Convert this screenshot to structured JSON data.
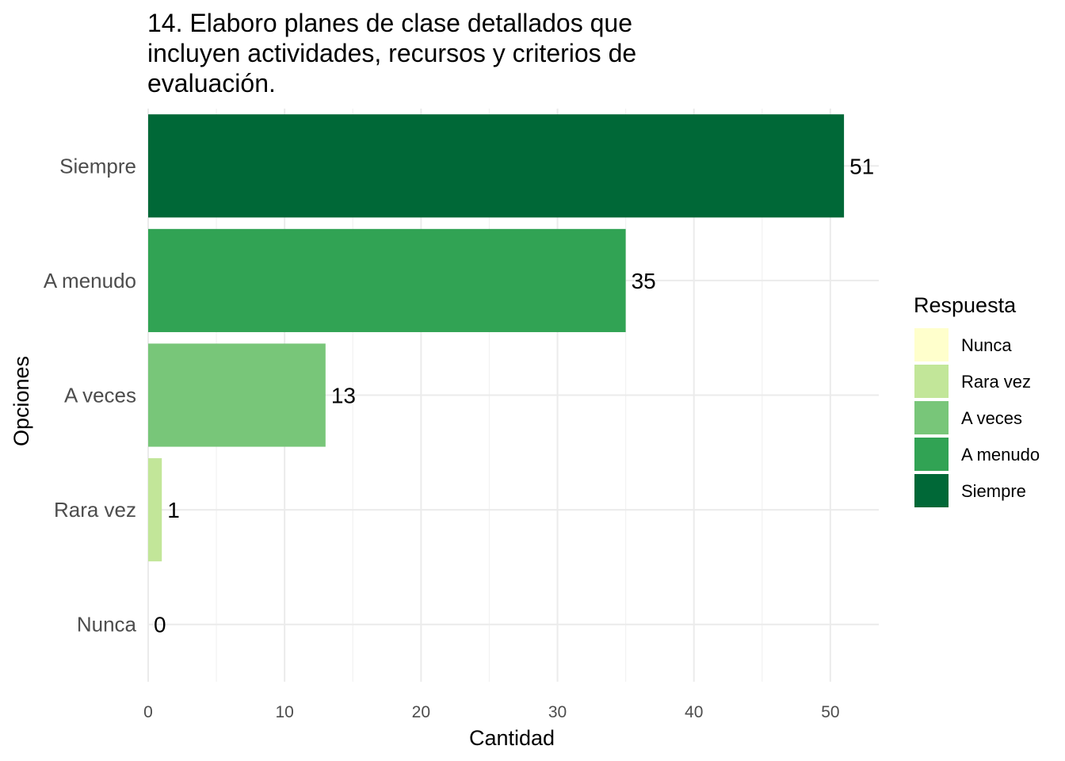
{
  "chart_data": {
    "type": "bar",
    "orientation": "horizontal",
    "title_lines": [
      "14. Elaboro planes de clase detallados que",
      "incluyen actividades, recursos y criterios de",
      "evaluación."
    ],
    "xlabel": "Cantidad",
    "ylabel": "Opciones",
    "categories": [
      "Nunca",
      "Rara vez",
      "A veces",
      "A menudo",
      "Siempre"
    ],
    "values": [
      0,
      1,
      13,
      35,
      51
    ],
    "colors": [
      "#ffffcc",
      "#c2e699",
      "#78c679",
      "#31a354",
      "#006837"
    ],
    "xlim": [
      0,
      53.55
    ],
    "x_ticks": [
      0,
      10,
      20,
      30,
      40,
      50
    ],
    "grid": true,
    "legend": {
      "title": "Respuesta",
      "position": "right",
      "entries": [
        "Nunca",
        "Rara vez",
        "A veces",
        "A menudo",
        "Siempre"
      ]
    }
  }
}
